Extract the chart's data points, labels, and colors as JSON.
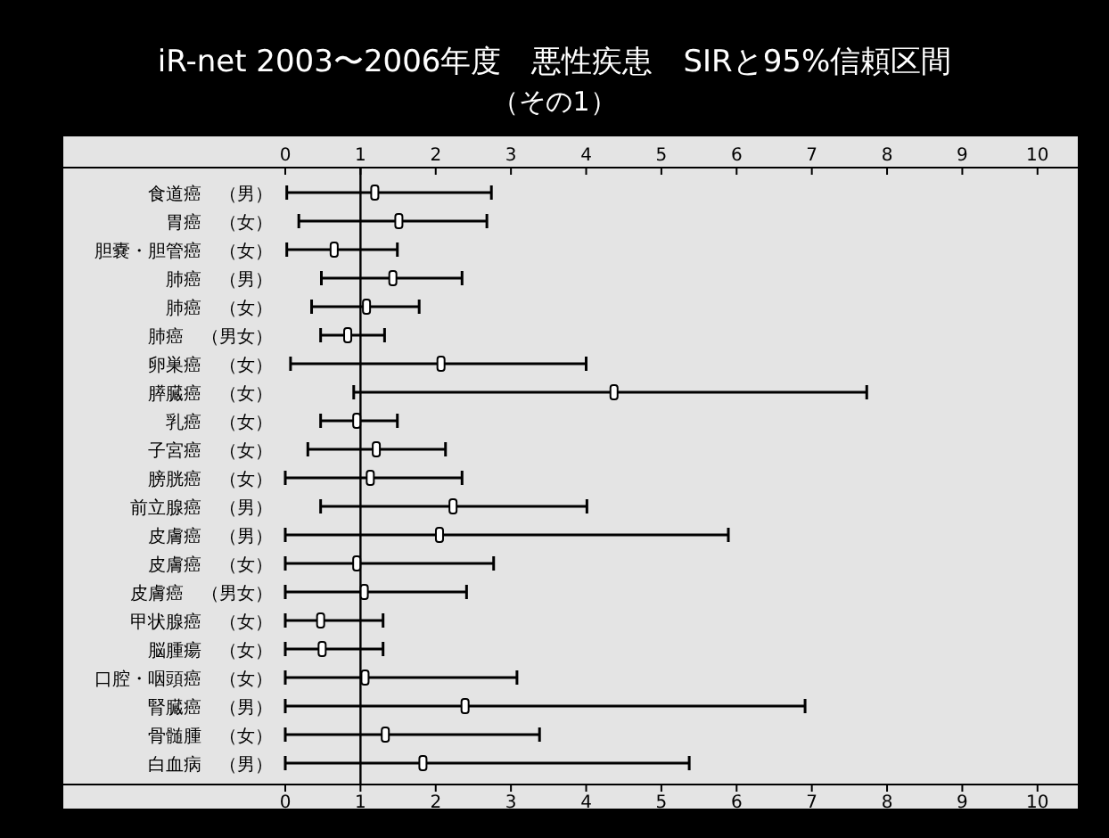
{
  "chart_data": {
    "type": "scatter",
    "orientation": "horizontal",
    "title": "iR-net 2003〜2006年度　悪性疾患　SIRと95%信頼区間",
    "subtitle": "（その1）",
    "categories": [
      "食道癌　（男）",
      "胃癌　（女）",
      "胆嚢・胆管癌　（女）",
      "肺癌　（男）",
      "肺癌　（女）",
      "肺癌　（男女）",
      "卵巣癌　（女）",
      "膵臓癌　（女）",
      "乳癌　（女）",
      "子宮癌　（女）",
      "膀胱癌　（女）",
      "前立腺癌　（男）",
      "皮膚癌　（男）",
      "皮膚癌　（女）",
      "皮膚癌　（男女）",
      "甲状腺癌　（女）",
      "脳腫瘍　（女）",
      "口腔・咽頭癌　（女）",
      "腎臓癌　（男）",
      "骨髄腫　（女）",
      "白血病　（男）"
    ],
    "values": [
      1.19,
      1.51,
      0.65,
      1.43,
      1.08,
      0.83,
      2.07,
      4.37,
      0.95,
      1.21,
      1.13,
      2.23,
      2.05,
      0.95,
      1.05,
      0.47,
      0.49,
      1.06,
      2.39,
      1.33,
      1.83
    ],
    "errors": [
      [
        0.02,
        2.74
      ],
      [
        0.18,
        2.68
      ],
      [
        0.02,
        1.49
      ],
      [
        0.48,
        2.35
      ],
      [
        0.35,
        1.78
      ],
      [
        0.47,
        1.32
      ],
      [
        0.07,
        4.0
      ],
      [
        0.91,
        7.73
      ],
      [
        0.47,
        1.49
      ],
      [
        0.3,
        2.13
      ],
      [
        0,
        2.35
      ],
      [
        0.47,
        4.01
      ],
      [
        0,
        5.89
      ],
      [
        0,
        2.77
      ],
      [
        0,
        2.41
      ],
      [
        0,
        1.3
      ],
      [
        0,
        1.3
      ],
      [
        0,
        3.08
      ],
      [
        0,
        6.91
      ],
      [
        0,
        3.38
      ],
      [
        0,
        5.37
      ]
    ],
    "color": "#000000",
    "marker": "square",
    "xlim": [
      0,
      10.5
    ],
    "xticks": [
      0,
      1,
      2,
      3,
      4,
      5,
      6,
      7,
      8,
      9,
      10
    ],
    "x2lim": [
      0,
      10.5
    ],
    "x2ticks": [
      0,
      1,
      2,
      3,
      4,
      5,
      6,
      7,
      8,
      9,
      10
    ],
    "ref_lines": [
      {
        "axis": "x",
        "value": 1,
        "color": "#000000"
      }
    ]
  }
}
